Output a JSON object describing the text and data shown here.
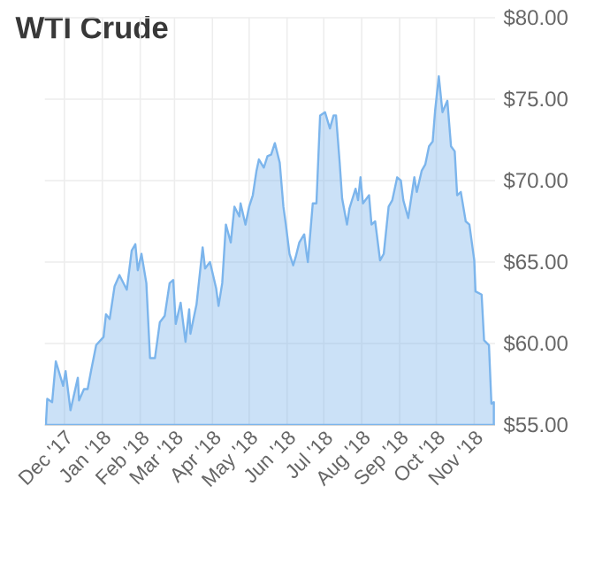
{
  "chart_data": {
    "type": "area",
    "title": "WTI Crude",
    "color": "#7cb5ec",
    "grid": true,
    "x": [
      "2017-11-16",
      "2017-11-17",
      "2017-11-21",
      "2017-11-24",
      "2017-11-30",
      "2017-12-02",
      "2017-12-06",
      "2017-12-12",
      "2017-12-13",
      "2017-12-17",
      "2017-12-20",
      "2017-12-23",
      "2017-12-27",
      "2018-01-02",
      "2018-01-04",
      "2018-01-07",
      "2018-01-11",
      "2018-01-15",
      "2018-01-21",
      "2018-01-25",
      "2018-01-28",
      "2018-01-30",
      "2018-02-02",
      "2018-02-06",
      "2018-02-09",
      "2018-02-13",
      "2018-02-17",
      "2018-02-21",
      "2018-02-25",
      "2018-02-28",
      "2018-03-02",
      "2018-03-06",
      "2018-03-10",
      "2018-03-13",
      "2018-03-14",
      "2018-03-19",
      "2018-03-22",
      "2018-03-24",
      "2018-03-26",
      "2018-03-30",
      "2018-04-04",
      "2018-04-06",
      "2018-04-09",
      "2018-04-12",
      "2018-04-16",
      "2018-04-19",
      "2018-04-23",
      "2018-04-24",
      "2018-04-28",
      "2018-05-01",
      "2018-05-04",
      "2018-05-07",
      "2018-05-09",
      "2018-05-13",
      "2018-05-16",
      "2018-05-19",
      "2018-05-22",
      "2018-05-26",
      "2018-05-29",
      "2018-05-31",
      "2018-06-03",
      "2018-06-06",
      "2018-06-08",
      "2018-06-11",
      "2018-06-15",
      "2018-06-17",
      "2018-06-18",
      "2018-06-22",
      "2018-06-25",
      "2018-06-28",
      "2018-07-02",
      "2018-07-06",
      "2018-07-09",
      "2018-07-11",
      "2018-07-14",
      "2018-07-16",
      "2018-07-20",
      "2018-07-22",
      "2018-07-27",
      "2018-07-29",
      "2018-07-31",
      "2018-08-02",
      "2018-08-07",
      "2018-08-09",
      "2018-08-12",
      "2018-08-16",
      "2018-08-19",
      "2018-08-23",
      "2018-08-26",
      "2018-08-30",
      "2018-09-02",
      "2018-09-04",
      "2018-09-08",
      "2018-09-13",
      "2018-09-15",
      "2018-09-19",
      "2018-09-22",
      "2018-09-25",
      "2018-09-28",
      "2018-09-30",
      "2018-10-03",
      "2018-10-06",
      "2018-10-10",
      "2018-10-13",
      "2018-10-16",
      "2018-10-18",
      "2018-10-21",
      "2018-10-25",
      "2018-10-28",
      "2018-11-01",
      "2018-11-02",
      "2018-11-07",
      "2018-11-09",
      "2018-11-13",
      "2018-11-15",
      "2018-11-17"
    ],
    "values": [
      55.2,
      56.6,
      56.4,
      58.9,
      57.4,
      58.3,
      55.9,
      57.9,
      56.5,
      57.2,
      57.2,
      58.4,
      59.9,
      60.4,
      61.8,
      61.5,
      63.5,
      64.2,
      63.3,
      65.7,
      66.1,
      64.5,
      65.5,
      63.7,
      59.1,
      59.1,
      61.3,
      61.7,
      63.7,
      63.9,
      61.2,
      62.5,
      60.1,
      62.1,
      60.6,
      62.4,
      64.5,
      65.9,
      64.6,
      65.0,
      63.4,
      62.3,
      63.7,
      67.3,
      66.2,
      68.4,
      67.8,
      68.6,
      67.3,
      68.4,
      69.1,
      70.6,
      71.3,
      70.8,
      71.5,
      71.6,
      72.3,
      71.1,
      68.4,
      67.3,
      65.5,
      64.8,
      65.3,
      66.2,
      66.7,
      65.5,
      65.0,
      68.6,
      68.6,
      74.0,
      74.2,
      73.2,
      74.0,
      74.0,
      71.1,
      68.9,
      67.3,
      68.3,
      69.5,
      68.8,
      70.2,
      68.6,
      69.1,
      67.3,
      67.5,
      65.1,
      65.5,
      68.4,
      68.8,
      70.2,
      70.0,
      68.8,
      67.7,
      70.2,
      69.3,
      70.6,
      71.0,
      72.1,
      72.4,
      74.3,
      76.4,
      74.2,
      74.9,
      72.1,
      71.8,
      69.1,
      69.3,
      67.5,
      67.3,
      65.1,
      63.2,
      63.0,
      60.2,
      59.9,
      56.3,
      56.4
    ],
    "xlim": [
      "2017-11-15",
      "2018-11-18"
    ],
    "ylim": [
      55,
      80
    ],
    "yticks": [
      {
        "value": 55,
        "label": "$55.00"
      },
      {
        "value": 60,
        "label": "$60.00"
      },
      {
        "value": 65,
        "label": "$65.00"
      },
      {
        "value": 70,
        "label": "$70.00"
      },
      {
        "value": 75,
        "label": "$75.00"
      },
      {
        "value": 80,
        "label": "$80.00"
      }
    ],
    "xticks": [
      {
        "value": "2017-12-01",
        "label": "Dec '17"
      },
      {
        "value": "2018-01-01",
        "label": "Jan '18"
      },
      {
        "value": "2018-02-01",
        "label": "Feb '18"
      },
      {
        "value": "2018-03-01",
        "label": "Mar '18"
      },
      {
        "value": "2018-04-01",
        "label": "Apr '18"
      },
      {
        "value": "2018-05-01",
        "label": "May '18"
      },
      {
        "value": "2018-06-01",
        "label": "Jun '18"
      },
      {
        "value": "2018-07-01",
        "label": "Jul '18"
      },
      {
        "value": "2018-08-01",
        "label": "Aug '18"
      },
      {
        "value": "2018-09-01",
        "label": "Sep '18"
      },
      {
        "value": "2018-10-01",
        "label": "Oct '18"
      },
      {
        "value": "2018-11-01",
        "label": "Nov '18"
      }
    ]
  }
}
